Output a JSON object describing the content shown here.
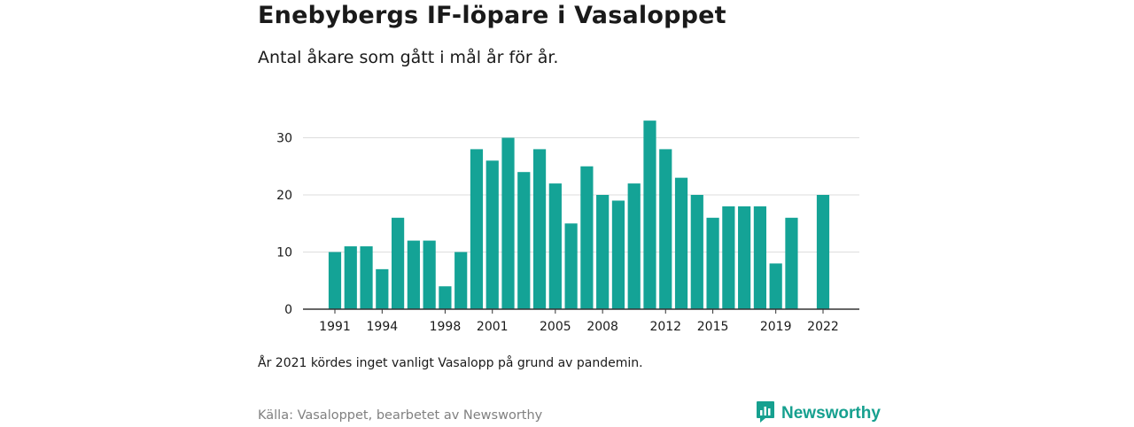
{
  "header": {
    "title": "Enebybergs IF-löpare i Vasaloppet",
    "subtitle": "Antal åkare som gått i mål år för år."
  },
  "footer": {
    "note": "År 2021 kördes inget vanligt Vasalopp på grund av pandemin.",
    "source": "Källa: Vasaloppet, bearbetet av Newsworthy",
    "brand": "Newsworthy",
    "brand_icon": "newsworthy-logo-icon"
  },
  "colors": {
    "bar": "#14a396",
    "grid": "#dddddd",
    "axis": "#333333",
    "brand": "#16a08f"
  },
  "chart_data": {
    "type": "bar",
    "categories": [
      1991,
      1992,
      1993,
      1994,
      1995,
      1996,
      1997,
      1998,
      1999,
      2000,
      2001,
      2002,
      2003,
      2004,
      2005,
      2006,
      2007,
      2008,
      2009,
      2010,
      2011,
      2012,
      2013,
      2014,
      2015,
      2016,
      2017,
      2018,
      2019,
      2020,
      2021,
      2022
    ],
    "values": [
      10,
      11,
      11,
      7,
      16,
      12,
      12,
      4,
      10,
      28,
      26,
      30,
      24,
      28,
      22,
      15,
      25,
      20,
      19,
      22,
      33,
      28,
      23,
      20,
      16,
      18,
      18,
      18,
      8,
      16,
      null,
      20
    ],
    "x_tick_labels": [
      "1991",
      "1994",
      "1998",
      "2001",
      "2005",
      "2008",
      "2012",
      "2015",
      "2019",
      "2022"
    ],
    "y_ticks": [
      0,
      10,
      20,
      30
    ],
    "ylim": [
      0,
      33
    ],
    "grid": true,
    "legend": "none"
  }
}
